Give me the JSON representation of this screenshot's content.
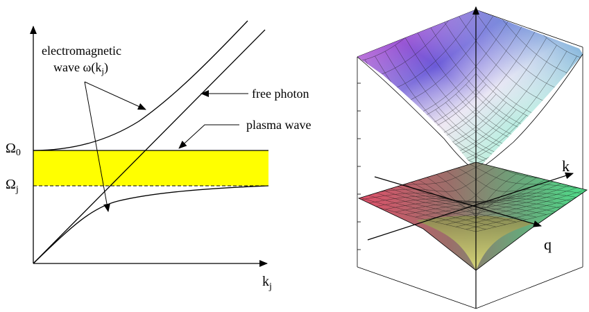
{
  "left_panel": {
    "axis_x_label": "k",
    "axis_x_sub": "j",
    "omega0_label": "Ω",
    "omega0_sub": "0",
    "omegaj_label": "Ω",
    "omegaj_sub": "j",
    "em_wave_line1": "electromagnetic",
    "em_wave_line2": "wave ω(k",
    "em_wave_sub": "j",
    "em_wave_close": ")",
    "free_photon": "free photon",
    "plasma_wave": "plasma wave",
    "band_color": "#ffff00"
  },
  "right_panel": {
    "axis_k_label": "k",
    "axis_q_label": "q"
  }
}
